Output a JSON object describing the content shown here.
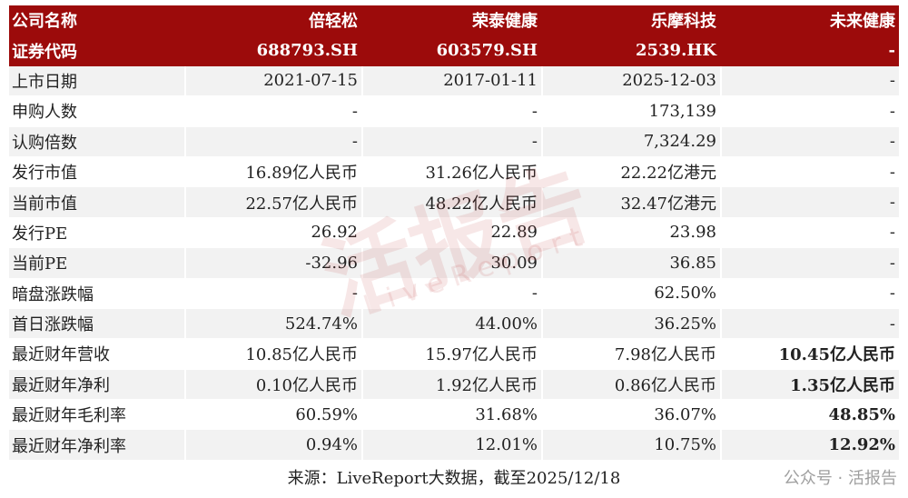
{
  "table": {
    "header": [
      [
        "公司名称",
        "倍轻松",
        "荣泰健康",
        "乐摩科技",
        "未来健康"
      ],
      [
        "证券代码",
        "688793.SH",
        "603579.SH",
        "2539.HK",
        "-"
      ]
    ],
    "rows": [
      [
        "上市日期",
        "2021-07-15",
        "2017-01-11",
        "2025-12-03",
        "-"
      ],
      [
        "申购人数",
        "-",
        "-",
        "173,139",
        "-"
      ],
      [
        "认购倍数",
        "-",
        "-",
        "7,324.29",
        "-"
      ],
      [
        "发行市值",
        "16.89亿人民币",
        "31.26亿人民币",
        "22.22亿港元",
        "-"
      ],
      [
        "当前市值",
        "22.57亿人民币",
        "48.22亿人民币",
        "32.47亿港元",
        "-"
      ],
      [
        "发行PE",
        "26.92",
        "22.89",
        "23.98",
        "-"
      ],
      [
        "当前PE",
        "-32.96",
        "30.09",
        "36.85",
        "-"
      ],
      [
        "暗盘涨跌幅",
        "-",
        "-",
        "62.50%",
        "-"
      ],
      [
        "首日涨跌幅",
        "524.74%",
        "44.00%",
        "36.25%",
        "-"
      ],
      [
        "最近财年营收",
        "10.85亿人民币",
        "15.97亿人民币",
        "7.98亿人民币",
        "10.45亿人民币"
      ],
      [
        "最近财年净利",
        "0.10亿人民币",
        "1.92亿人民币",
        "0.86亿人民币",
        "1.35亿人民币"
      ],
      [
        "最近财年毛利率",
        "60.59%",
        "31.68%",
        "36.07%",
        "48.85%"
      ],
      [
        "最近财年净利率",
        "0.94%",
        "12.01%",
        "10.75%",
        "12.92%"
      ]
    ]
  },
  "footer": "来源：LiveReport大数据，截至2025/12/18",
  "watermark": {
    "main": "活报告",
    "sub": "LiveReport"
  },
  "credit": "公众号 · 活报告"
}
